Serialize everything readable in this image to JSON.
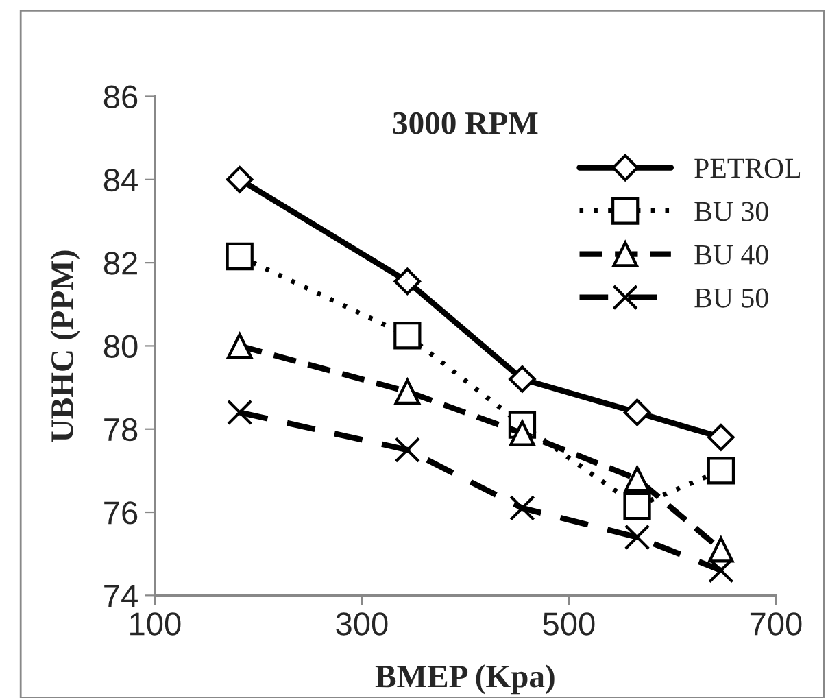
{
  "chart_data": {
    "type": "line",
    "title": "3000 RPM",
    "xlabel": "BMEP (Kpa)",
    "ylabel": "UBHC (PPM)",
    "xlim": [
      100,
      700
    ],
    "xticks": [
      100,
      300,
      500,
      700
    ],
    "ylim": [
      74,
      86
    ],
    "yticks": [
      74,
      76,
      78,
      80,
      82,
      84,
      86
    ],
    "grid": false,
    "legend": "top right",
    "series": [
      {
        "name": "PETROL",
        "color": "#000000",
        "marker": "diamond",
        "line_style": "solid",
        "x": [
          182,
          344,
          455,
          566,
          647
        ],
        "values": [
          84.0,
          81.55,
          79.2,
          78.4,
          77.8
        ]
      },
      {
        "name": "BU 30",
        "color": "#000000",
        "marker": "square",
        "line_style": "dotted",
        "x": [
          182,
          344,
          455,
          566,
          647
        ],
        "values": [
          82.15,
          80.25,
          78.1,
          76.15,
          77.0
        ]
      },
      {
        "name": "BU 40",
        "color": "#000000",
        "marker": "triangle",
        "line_style": "dashed",
        "x": [
          182,
          344,
          455,
          566,
          647
        ],
        "values": [
          80.0,
          78.9,
          77.9,
          76.8,
          75.1
        ]
      },
      {
        "name": "BU 50",
        "color": "#000000",
        "marker": "cross",
        "line_style": "dashed",
        "x": [
          182,
          344,
          455,
          566,
          647
        ],
        "values": [
          78.4,
          77.5,
          76.1,
          75.4,
          74.6
        ]
      }
    ]
  }
}
